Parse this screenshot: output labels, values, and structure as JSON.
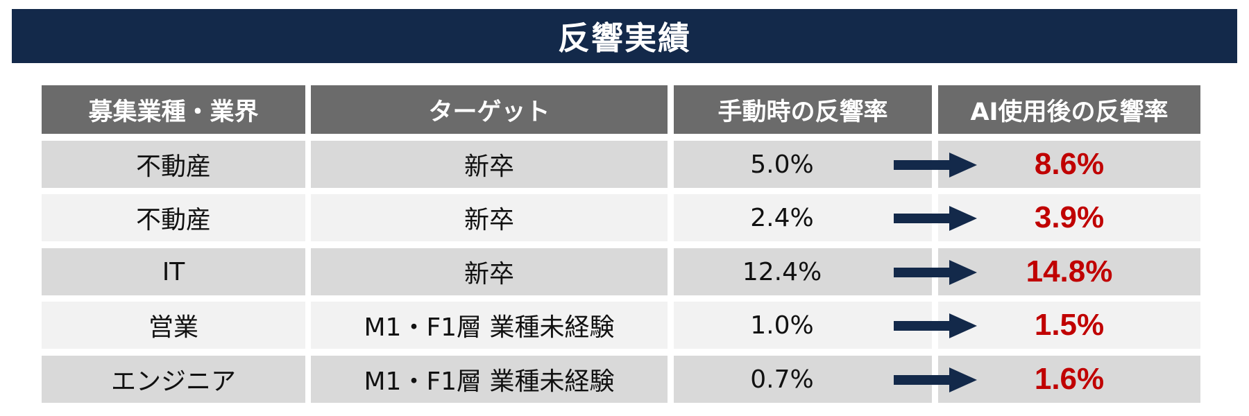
{
  "title": "反響実績",
  "headers": {
    "industry": "募集業種・業界",
    "target": "ターゲット",
    "manual_rate": "手動時の反響率",
    "ai_rate": "AI使用後の反響率"
  },
  "rows": [
    {
      "industry": "不動産",
      "target": "新卒",
      "manual_rate": "5.0%",
      "ai_rate": "8.6%"
    },
    {
      "industry": "不動産",
      "target": "新卒",
      "manual_rate": "2.4%",
      "ai_rate": "3.9%"
    },
    {
      "industry": "IT",
      "target": "新卒",
      "manual_rate": "12.4%",
      "ai_rate": "14.8%"
    },
    {
      "industry": "営業",
      "target": "M1・F1層 業種未経験",
      "manual_rate": "1.0%",
      "ai_rate": "1.5%"
    },
    {
      "industry": "エンジニア",
      "target": "M1・F1層 業種未経験",
      "manual_rate": "0.7%",
      "ai_rate": "1.6%"
    }
  ],
  "colors": {
    "title_bg": "#13294a",
    "header_bg": "#6b6b6b",
    "row_dark": "#d9d9d9",
    "row_light": "#f2f2f2",
    "ai_rate_text": "#c00000",
    "arrow": "#13294a"
  },
  "icons": {
    "arrow": "right-arrow-icon"
  }
}
